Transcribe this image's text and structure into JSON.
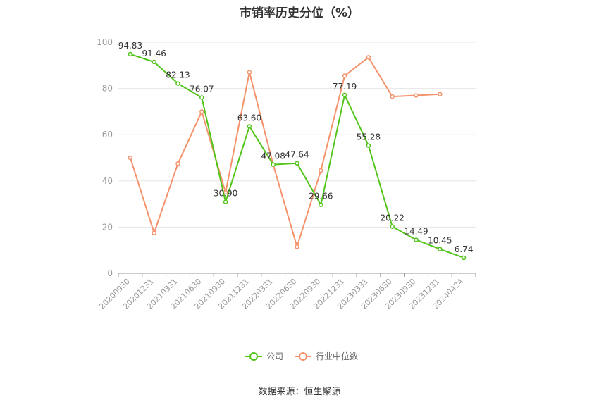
{
  "chart_data": {
    "type": "line",
    "title": "市销率历史分位（%）",
    "categories": [
      "20200930",
      "20201231",
      "20210331",
      "20210630",
      "20210930",
      "20211231",
      "20220331",
      "20220630",
      "20220930",
      "20221231",
      "20230331",
      "20230630",
      "20230930",
      "20231231",
      "20240424"
    ],
    "ylim": [
      0,
      100
    ],
    "yticks": [
      0,
      20,
      40,
      60,
      80,
      100
    ],
    "grid": true,
    "legend_position": "bottom",
    "series": [
      {
        "name": "公司",
        "color": "#52c41a",
        "labels": true,
        "values": [
          94.83,
          91.46,
          82.13,
          76.07,
          30.9,
          63.6,
          47.08,
          47.64,
          29.66,
          77.19,
          55.28,
          20.22,
          14.49,
          10.45,
          6.74
        ]
      },
      {
        "name": "行业中位数",
        "color": "#f4926b",
        "labels": false,
        "values": [
          50,
          17.5,
          47.5,
          70,
          35,
          87,
          47,
          11.5,
          44.5,
          85.5,
          93.5,
          76.5,
          77,
          77.5,
          null
        ]
      }
    ]
  },
  "source": "数据来源：恒生聚源"
}
